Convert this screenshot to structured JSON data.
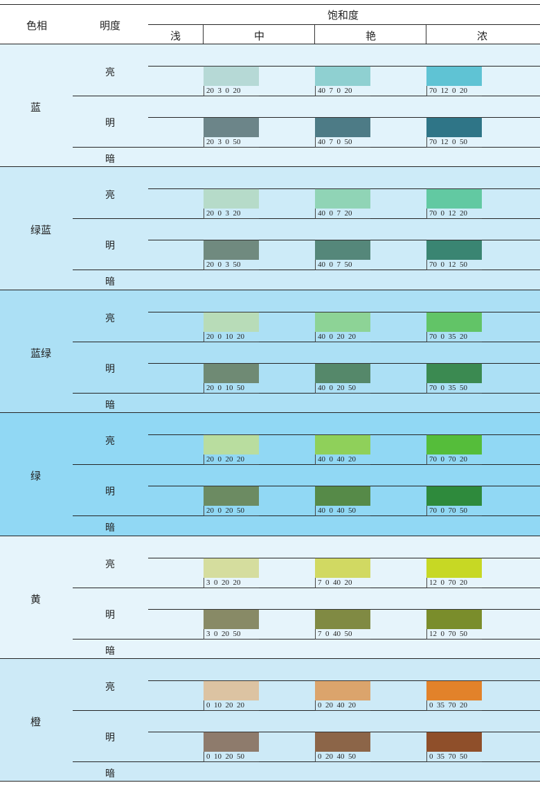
{
  "header": {
    "hue_col": "色相",
    "value_col": "明度",
    "saturation_group": "饱和度",
    "saturation_levels": [
      "浅",
      "中",
      "艳",
      "浓"
    ]
  },
  "level_labels": {
    "light": "亮",
    "mid": "明",
    "dark": "暗"
  },
  "bands": [
    {
      "hue": "蓝",
      "bg": "#e2f3fb",
      "light": [
        {
          "code": "20  3  0  20",
          "color": "#b6d9d6"
        },
        {
          "code": "40  7  0  20",
          "color": "#8fd0d1"
        },
        {
          "code": "70  12  0  20",
          "color": "#5fc3d4"
        }
      ],
      "mid": [
        {
          "code": "20  3  0  50",
          "color": "#6c8589"
        },
        {
          "code": "40  7  0  50",
          "color": "#4d7b86"
        },
        {
          "code": "70  12  0  50",
          "color": "#2f7587"
        }
      ]
    },
    {
      "hue": "绿蓝",
      "bg": "#cdebf8",
      "light": [
        {
          "code": "20  0  3  20",
          "color": "#b6dbc9"
        },
        {
          "code": "40  0  7  20",
          "color": "#90d4b6"
        },
        {
          "code": "70  0  12  20",
          "color": "#62c9a2"
        }
      ],
      "mid": [
        {
          "code": "20  0  3  50",
          "color": "#708a7f"
        },
        {
          "code": "40  0  7  50",
          "color": "#55877a"
        },
        {
          "code": "70  0  12  50",
          "color": "#3a8572"
        }
      ]
    },
    {
      "hue": "蓝绿",
      "bg": "#ace0f5",
      "light": [
        {
          "code": "20  0  10  20",
          "color": "#b8dcb8"
        },
        {
          "code": "40  0  20  20",
          "color": "#8dd396"
        },
        {
          "code": "70  0  35  20",
          "color": "#62c467"
        }
      ],
      "mid": [
        {
          "code": "20  0  10  50",
          "color": "#6f8a74"
        },
        {
          "code": "40  0  20  50",
          "color": "#55886a"
        },
        {
          "code": "70  0  35  50",
          "color": "#3b8a51"
        }
      ]
    },
    {
      "hue": "绿",
      "bg": "#91d8f4",
      "light": [
        {
          "code": "20  0  20  20",
          "color": "#b9dd9f"
        },
        {
          "code": "40  0  40  20",
          "color": "#8fd05a"
        },
        {
          "code": "70  0  70  20",
          "color": "#55bd3a"
        }
      ],
      "mid": [
        {
          "code": "20  0  20  50",
          "color": "#6c8b62"
        },
        {
          "code": "40  0  40  50",
          "color": "#568a48"
        },
        {
          "code": "70  0  70  50",
          "color": "#2e8a3c"
        }
      ]
    },
    {
      "hue": "黄",
      "bg": "#e6f4fb",
      "light": [
        {
          "code": "3  0  20  20",
          "color": "#d5dd9e"
        },
        {
          "code": "7  0  40  20",
          "color": "#d1d962"
        },
        {
          "code": "12  0  70  20",
          "color": "#c7d824"
        }
      ],
      "mid": [
        {
          "code": "3  0  20  50",
          "color": "#888a66"
        },
        {
          "code": "7  0  40  50",
          "color": "#808a43"
        },
        {
          "code": "12  0  70  50",
          "color": "#7a8d2b"
        }
      ]
    },
    {
      "hue": "橙",
      "bg": "#cdeaf7",
      "light": [
        {
          "code": "0  10  20  20",
          "color": "#dcc3a2"
        },
        {
          "code": "0  20  40  20",
          "color": "#dba46c"
        },
        {
          "code": "0  35  70  20",
          "color": "#e2822a"
        }
      ],
      "mid": [
        {
          "code": "0  10  20  50",
          "color": "#8e7b6c"
        },
        {
          "code": "0  20  40  50",
          "color": "#8c6548"
        },
        {
          "code": "0  35  70  50",
          "color": "#8f4f2a"
        }
      ]
    }
  ]
}
